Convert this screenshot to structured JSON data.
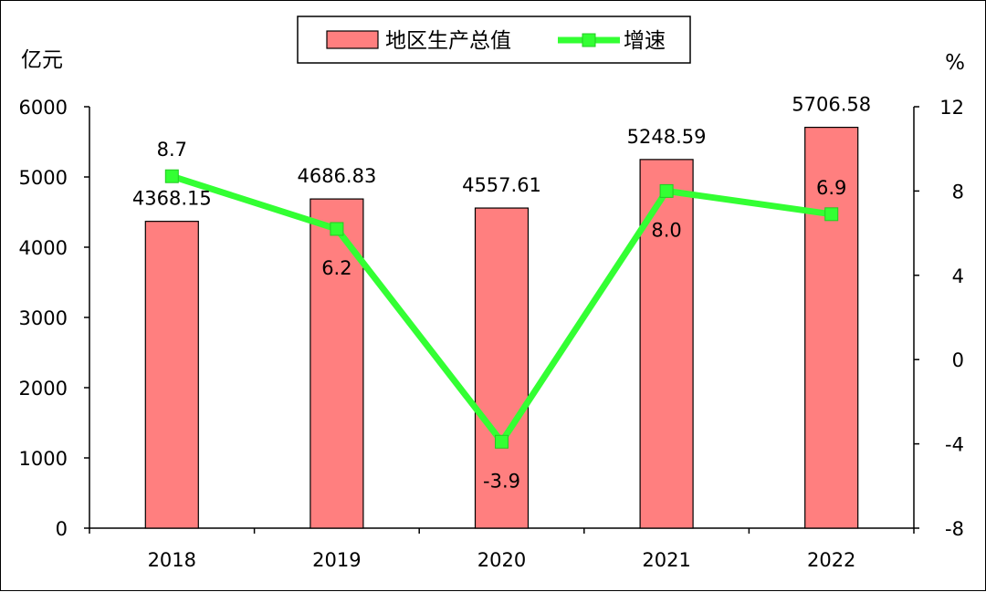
{
  "chart_data": {
    "type": "bar",
    "categories": [
      "2018",
      "2019",
      "2020",
      "2021",
      "2022"
    ],
    "series": [
      {
        "name": "地区生产总值",
        "type": "bar",
        "axis": "left",
        "values": [
          4368.15,
          4686.83,
          4557.61,
          5248.59,
          5706.58
        ],
        "labels": [
          "4368.15",
          "4686.83",
          "4557.61",
          "5248.59",
          "5706.58"
        ],
        "color": "#ff7f7f"
      },
      {
        "name": "增速",
        "type": "line",
        "axis": "right",
        "values": [
          8.7,
          6.2,
          -3.9,
          8.0,
          6.9
        ],
        "labels": [
          "8.7",
          "6.2",
          "-3.9",
          "8.0",
          "6.9"
        ],
        "color": "#33ff33"
      }
    ],
    "y_left": {
      "unit": "亿元",
      "ylim": [
        0,
        6000
      ],
      "ticks": [
        "0",
        "1000",
        "2000",
        "3000",
        "4000",
        "5000",
        "6000"
      ]
    },
    "y_right": {
      "unit": "%",
      "ylim": [
        -8,
        12
      ],
      "ticks": [
        "-8",
        "-4",
        "0",
        "4",
        "8",
        "12"
      ]
    },
    "grid": false,
    "legend_position": "top-center"
  }
}
